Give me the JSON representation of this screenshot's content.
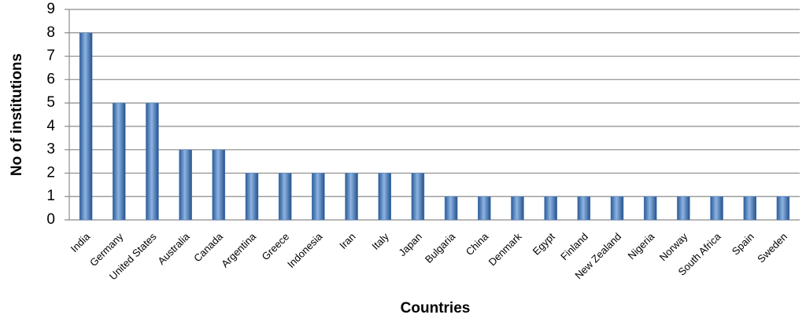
{
  "chart_data": {
    "type": "bar",
    "xlabel": "Countries",
    "ylabel": "No of institutions",
    "categories": [
      "India",
      "Germany",
      "United States",
      "Australia",
      "Canada",
      "Argentina",
      "Greece",
      "Indonesia",
      "Iran",
      "Italy",
      "Japan",
      "Bulgaria",
      "China",
      "Denmark",
      "Egypt",
      "Finland",
      "New Zealand",
      "Nigeria",
      "Norway",
      "South Africa",
      "Spain",
      "Sweden"
    ],
    "values": [
      8,
      5,
      5,
      3,
      3,
      2,
      2,
      2,
      2,
      2,
      2,
      1,
      1,
      1,
      1,
      1,
      1,
      1,
      1,
      1,
      1,
      1
    ],
    "color": "#4f81bd",
    "ylim": [
      0,
      9
    ],
    "yticks": [
      0,
      1,
      2,
      3,
      4,
      5,
      6,
      7,
      8,
      9
    ],
    "grid": true
  }
}
